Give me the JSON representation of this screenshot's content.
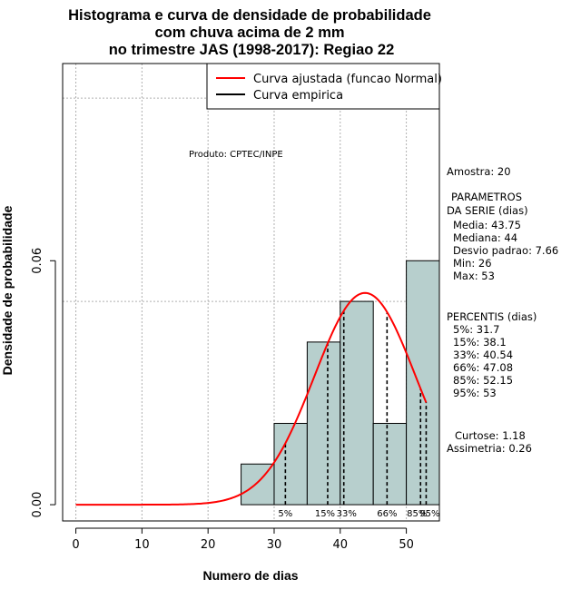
{
  "chart_data": {
    "type": "bar",
    "title_lines": [
      "Histograma e curva de densidade de probabilidade",
      "com chuva acima de 2 mm",
      "no trimestre JAS (1998-2017): Regiao 22"
    ],
    "xlabel": "Numero de dias",
    "ylabel": "Densidade de probabilidade",
    "xlim": [
      -2,
      55
    ],
    "ylim": [
      -0.004,
      0.1085
    ],
    "x_ticks": [
      "0",
      "10",
      "20",
      "30",
      "40",
      "50"
    ],
    "x_tick_values": [
      0,
      10,
      20,
      30,
      40,
      50
    ],
    "y_ticks": [
      "0.00",
      "0.06"
    ],
    "y_tick_values": [
      0.0,
      0.06
    ],
    "grid": true,
    "grid_x": [
      0,
      10,
      20,
      30,
      40,
      50
    ],
    "grid_y": [
      0.05,
      0.1
    ],
    "bins": [
      {
        "start": 25,
        "end": 30,
        "density": 0.01
      },
      {
        "start": 30,
        "end": 35,
        "density": 0.02
      },
      {
        "start": 35,
        "end": 40,
        "density": 0.04
      },
      {
        "start": 40,
        "end": 45,
        "density": 0.05
      },
      {
        "start": 45,
        "end": 50,
        "density": 0.02
      },
      {
        "start": 50,
        "end": 55,
        "density": 0.06
      }
    ],
    "series": [
      {
        "name": "Curva ajustada (funcao Normal)",
        "color": "#ff0000",
        "kind": "normal-curve",
        "mean": 43.75,
        "sd": 7.66,
        "x_range": [
          0,
          53
        ]
      },
      {
        "name": "Curva empirica",
        "color": "#000000",
        "kind": "empirical"
      }
    ],
    "legend_position": "top-right",
    "percentile_lines": [
      {
        "label": "5%",
        "x": 31.7
      },
      {
        "label": "15%",
        "x": 38.1
      },
      {
        "label": "33%",
        "x": 40.54
      },
      {
        "label": "66%",
        "x": 47.08
      },
      {
        "label": "85%",
        "x": 52.15
      },
      {
        "label": "95%",
        "x": 53
      }
    ],
    "product_label": "Produto: CPTEC/INPE",
    "bar_color": "#b7cfcd"
  },
  "sidebar": {
    "amostra": "Amostra: 20",
    "params_header_1": "PARAMETROS",
    "params_header_2": "DA SERIE (dias)",
    "params": [
      "Media: 43.75",
      "Mediana: 44",
      "Desvio padrao: 7.66",
      "Min: 26",
      "Max: 53"
    ],
    "percentis_header": "PERCENTIS (dias)",
    "percentis": [
      "5%: 31.7",
      "15%: 38.1",
      "33%: 40.54",
      "66%: 47.08",
      "85%: 52.15",
      "95%: 53"
    ],
    "curtose": "Curtose: 1.18",
    "assimetria": "Assimetria: 0.26"
  }
}
